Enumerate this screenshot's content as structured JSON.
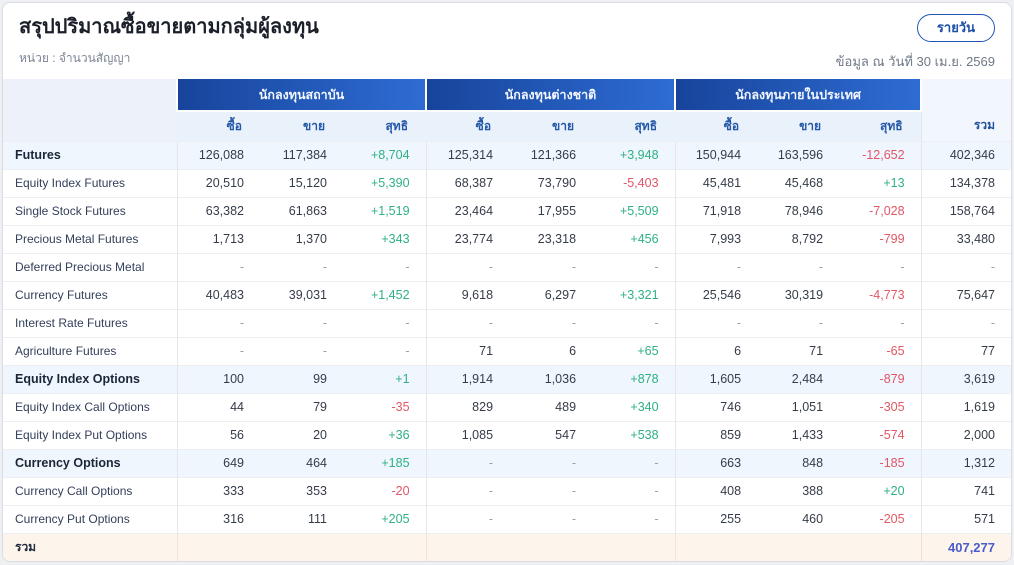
{
  "page": {
    "title": "สรุปปริมาณซื้อขายตามกลุ่มผู้ลงทุน",
    "unit_label": "หน่วย : จำนวนสัญญา",
    "as_of_label": "ข้อมูล ณ วันที่ 30 เม.ย. 2569",
    "view_button_label": "รายวัน"
  },
  "colors": {
    "header_gradient_start": "#17449b",
    "header_gradient_end": "#2e6cd3",
    "positive": "#2eb182",
    "negative": "#e25666",
    "grand_total": "#4a5cc9",
    "footer_bg": "#fdf4ec",
    "category_row_bg": "#eff6fe"
  },
  "table": {
    "groups": [
      {
        "label": "นักลงทุนสถาบัน"
      },
      {
        "label": "นักลงทุนต่างชาติ"
      },
      {
        "label": "นักลงทุนภายในประเทศ"
      }
    ],
    "sub_headers": [
      "ซื้อ",
      "ขาย",
      "สุทธิ"
    ],
    "total_header": "รวม",
    "rows": [
      {
        "label": "Futures",
        "category": true,
        "cells": [
          "126,088",
          "117,384",
          "+8,704",
          "125,314",
          "121,366",
          "+3,948",
          "150,944",
          "163,596",
          "-12,652"
        ],
        "total": "402,346"
      },
      {
        "label": "Equity Index Futures",
        "category": false,
        "cells": [
          "20,510",
          "15,120",
          "+5,390",
          "68,387",
          "73,790",
          "-5,403",
          "45,481",
          "45,468",
          "+13"
        ],
        "total": "134,378"
      },
      {
        "label": "Single Stock Futures",
        "category": false,
        "cells": [
          "63,382",
          "61,863",
          "+1,519",
          "23,464",
          "17,955",
          "+5,509",
          "71,918",
          "78,946",
          "-7,028"
        ],
        "total": "158,764"
      },
      {
        "label": "Precious Metal Futures",
        "category": false,
        "cells": [
          "1,713",
          "1,370",
          "+343",
          "23,774",
          "23,318",
          "+456",
          "7,993",
          "8,792",
          "-799"
        ],
        "total": "33,480"
      },
      {
        "label": "Deferred Precious Metal",
        "category": false,
        "cells": [
          "-",
          "-",
          "-",
          "-",
          "-",
          "-",
          "-",
          "-",
          "-"
        ],
        "total": "-"
      },
      {
        "label": "Currency Futures",
        "category": false,
        "cells": [
          "40,483",
          "39,031",
          "+1,452",
          "9,618",
          "6,297",
          "+3,321",
          "25,546",
          "30,319",
          "-4,773"
        ],
        "total": "75,647"
      },
      {
        "label": "Interest Rate Futures",
        "category": false,
        "cells": [
          "-",
          "-",
          "-",
          "-",
          "-",
          "-",
          "-",
          "-",
          "-"
        ],
        "total": "-"
      },
      {
        "label": "Agriculture Futures",
        "category": false,
        "cells": [
          "-",
          "-",
          "-",
          "71",
          "6",
          "+65",
          "6",
          "71",
          "-65"
        ],
        "total": "77"
      },
      {
        "label": "Equity Index Options",
        "category": true,
        "cells": [
          "100",
          "99",
          "+1",
          "1,914",
          "1,036",
          "+878",
          "1,605",
          "2,484",
          "-879"
        ],
        "total": "3,619"
      },
      {
        "label": "Equity Index Call Options",
        "category": false,
        "cells": [
          "44",
          "79",
          "-35",
          "829",
          "489",
          "+340",
          "746",
          "1,051",
          "-305"
        ],
        "total": "1,619"
      },
      {
        "label": "Equity Index Put Options",
        "category": false,
        "cells": [
          "56",
          "20",
          "+36",
          "1,085",
          "547",
          "+538",
          "859",
          "1,433",
          "-574"
        ],
        "total": "2,000"
      },
      {
        "label": "Currency Options",
        "category": true,
        "cells": [
          "649",
          "464",
          "+185",
          "-",
          "-",
          "-",
          "663",
          "848",
          "-185"
        ],
        "total": "1,312"
      },
      {
        "label": "Currency Call Options",
        "category": false,
        "cells": [
          "333",
          "353",
          "-20",
          "-",
          "-",
          "-",
          "408",
          "388",
          "+20"
        ],
        "total": "741"
      },
      {
        "label": "Currency Put Options",
        "category": false,
        "cells": [
          "316",
          "111",
          "+205",
          "-",
          "-",
          "-",
          "255",
          "460",
          "-205"
        ],
        "total": "571"
      }
    ],
    "footer": {
      "label": "รวม",
      "grand_total": "407,277"
    }
  }
}
